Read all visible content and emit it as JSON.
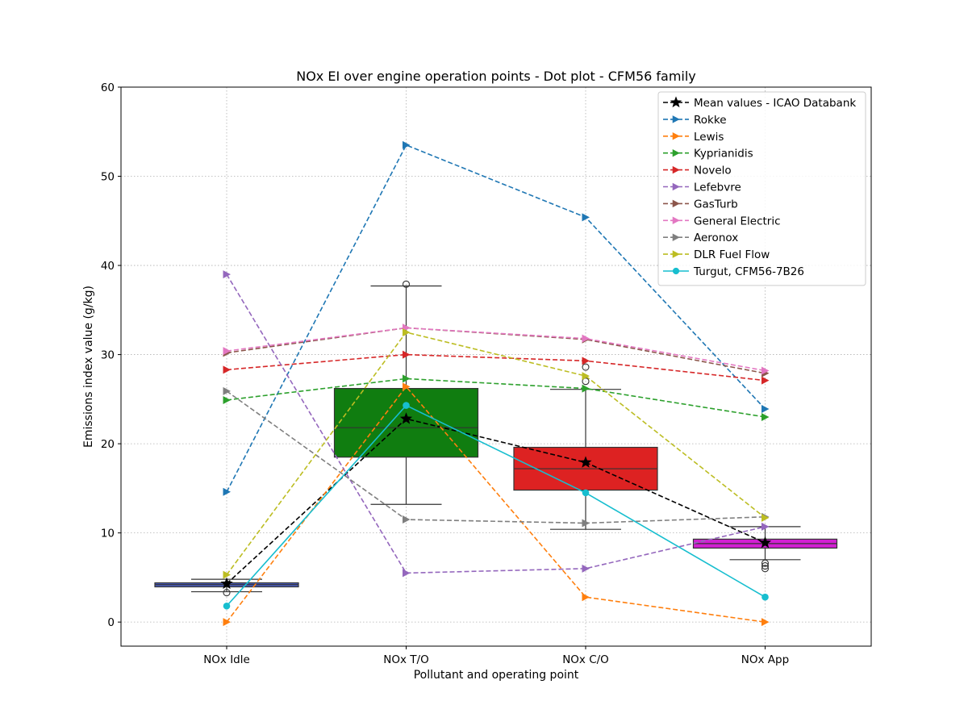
{
  "chart_data": {
    "type": "box",
    "title": "NOx EI over engine operation points - Dot plot - CFM56 family",
    "xlabel": "Pollutant and operating point",
    "ylabel": "Emissions index value (g/kg)",
    "categories": [
      "NOx Idle",
      "NOx T/O",
      "NOx C/O",
      "NOx App"
    ],
    "ylim": [
      -2.7,
      60
    ],
    "yticks": [
      0,
      10,
      20,
      30,
      40,
      50,
      60
    ],
    "grid": true,
    "legend_position": "top-right",
    "boxes": [
      {
        "category": "NOx Idle",
        "color": "#4c5ec4",
        "q1": 3.95,
        "median": 4.2,
        "q3": 4.4,
        "whisker_low": 3.4,
        "whisker_high": 4.8,
        "outliers": [
          3.3
        ]
      },
      {
        "category": "NOx T/O",
        "color": "#107d10",
        "q1": 18.5,
        "median": 21.8,
        "q3": 26.2,
        "whisker_low": 13.2,
        "whisker_high": 37.7,
        "outliers": [
          37.9
        ]
      },
      {
        "category": "NOx C/O",
        "color": "#dd2222",
        "q1": 14.8,
        "median": 17.2,
        "q3": 19.6,
        "whisker_low": 10.4,
        "whisker_high": 26.1,
        "outliers": [
          28.6,
          27.0
        ]
      },
      {
        "category": "NOx App",
        "color": "#d21fd2",
        "q1": 8.3,
        "median": 8.8,
        "q3": 9.3,
        "whisker_low": 7.0,
        "whisker_high": 10.7,
        "outliers": [
          6.6,
          6.3,
          6.0
        ]
      }
    ],
    "series": [
      {
        "name": "Mean values - ICAO Databank",
        "color": "#000000",
        "marker": "star",
        "dash": true,
        "values": [
          4.3,
          22.8,
          17.9,
          8.9
        ]
      },
      {
        "name": "Rokke",
        "color": "#1f77b4",
        "marker": "triangle-right",
        "dash": true,
        "values": [
          14.6,
          53.5,
          45.4,
          23.9
        ]
      },
      {
        "name": "Lewis",
        "color": "#ff7f0e",
        "marker": "triangle-right",
        "dash": true,
        "values": [
          0.0,
          26.4,
          2.8,
          0.0
        ]
      },
      {
        "name": "Kyprianidis",
        "color": "#2ca02c",
        "marker": "triangle-right",
        "dash": true,
        "values": [
          24.9,
          27.3,
          26.2,
          23.0
        ]
      },
      {
        "name": "Novelo",
        "color": "#d62728",
        "marker": "triangle-right",
        "dash": true,
        "values": [
          28.3,
          30.0,
          29.3,
          27.1
        ]
      },
      {
        "name": "Lefebvre",
        "color": "#9467bd",
        "marker": "triangle-right",
        "dash": true,
        "values": [
          39.0,
          5.5,
          6.0,
          10.7
        ]
      },
      {
        "name": "GasTurb",
        "color": "#8c564b",
        "marker": "triangle-right",
        "dash": true,
        "values": [
          30.2,
          33.0,
          31.7,
          27.9
        ]
      },
      {
        "name": "General Electric",
        "color": "#e377c2",
        "marker": "triangle-right",
        "dash": true,
        "values": [
          30.4,
          33.0,
          31.8,
          28.2
        ]
      },
      {
        "name": "Aeronox",
        "color": "#7f7f7f",
        "marker": "triangle-right",
        "dash": true,
        "values": [
          25.9,
          11.5,
          11.1,
          11.8
        ]
      },
      {
        "name": "DLR Fuel Flow",
        "color": "#bcbd22",
        "marker": "triangle-right",
        "dash": true,
        "values": [
          5.3,
          32.5,
          27.6,
          11.7
        ]
      },
      {
        "name": "Turgut, CFM56-7B26",
        "color": "#17becf",
        "marker": "circle",
        "dash": false,
        "values": [
          1.8,
          24.3,
          14.5,
          2.8
        ]
      }
    ]
  }
}
